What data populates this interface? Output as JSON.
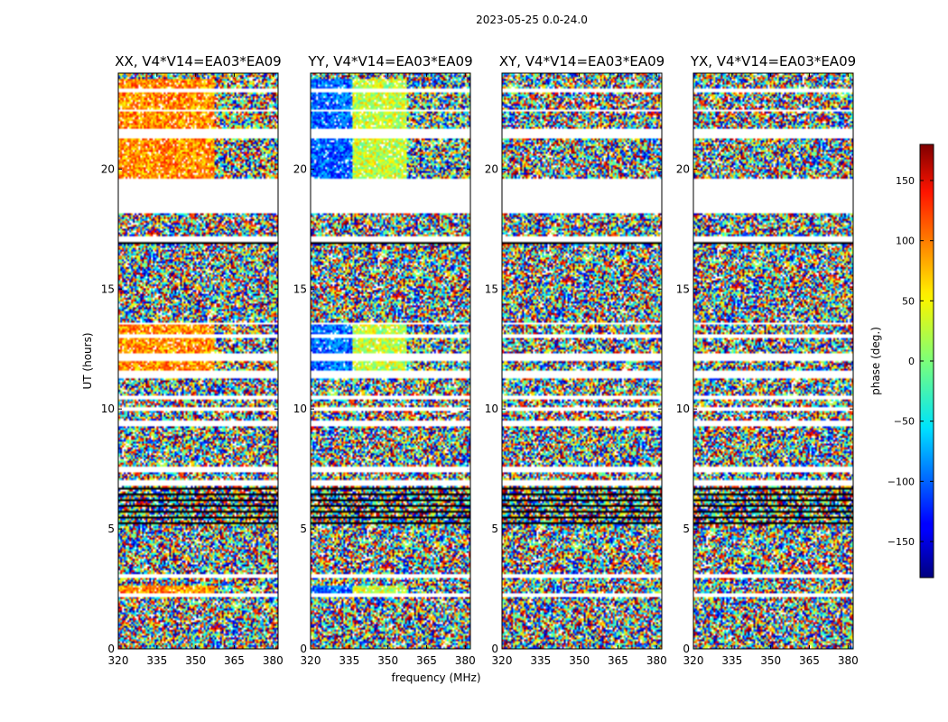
{
  "suptitle": "2023-05-25 0.0-24.0",
  "chart_data": {
    "type": "heatmap",
    "suptitle": "2023-05-25 0.0-24.0",
    "xlabel": "frequency (MHz)",
    "ylabel": "UT (hours)",
    "xlim": [
      320,
      382
    ],
    "ylim": [
      0,
      24
    ],
    "xticks": [
      320,
      335,
      350,
      365,
      380
    ],
    "yticks": [
      0,
      5,
      10,
      15,
      20
    ],
    "colormap": "jet",
    "colorbar": {
      "label": "phase (deg.)",
      "range": [
        -180,
        180
      ],
      "ticks": [
        -150,
        -100,
        -50,
        0,
        50,
        100,
        150
      ]
    },
    "flagged_rows_hours": [
      [
        2.15,
        2.3
      ],
      [
        2.95,
        3.1
      ],
      [
        6.8,
        7.0
      ],
      [
        7.35,
        7.6
      ],
      [
        9.3,
        9.55
      ],
      [
        9.9,
        10.05
      ],
      [
        10.4,
        10.55
      ],
      [
        11.25,
        11.6
      ],
      [
        12.0,
        12.3
      ],
      [
        12.95,
        13.15
      ],
      [
        13.5,
        13.6
      ],
      [
        16.95,
        17.2
      ],
      [
        18.15,
        19.6
      ],
      [
        21.3,
        21.7
      ],
      [
        22.4,
        22.5
      ],
      [
        23.2,
        23.35
      ]
    ],
    "panels": [
      {
        "title": "XX, V4*V14=EA03*EA09",
        "coherent_signal": true,
        "mean_phase_deg": 85
      },
      {
        "title": "YY, V4*V14=EA03*EA09",
        "coherent_signal": true,
        "mean_phase_deg": -100
      },
      {
        "title": "XY, V4*V14=EA03*EA09",
        "coherent_signal": false
      },
      {
        "title": "YX, V4*V14=EA03*EA09",
        "coherent_signal": false
      }
    ]
  }
}
